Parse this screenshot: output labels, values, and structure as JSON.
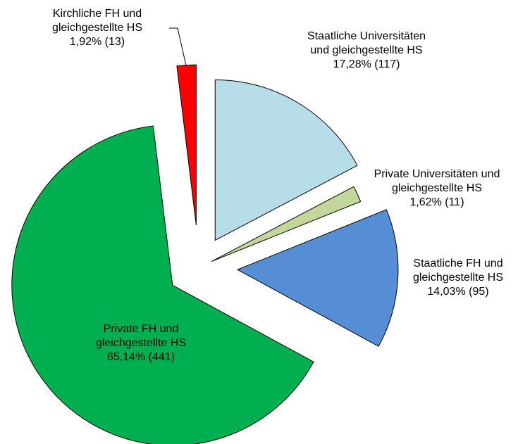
{
  "chart_data": {
    "type": "pie",
    "categories": [
      "Staatliche Universitäten und gleichgestellte HS",
      "Private Universitäten und gleichgestellte HS",
      "Staatliche FH und gleichgestellte HS",
      "Private FH und gleichgestellte HS",
      "Kirchliche FH und gleichgestellte HS"
    ],
    "values": [
      17.28,
      1.62,
      14.03,
      65.14,
      1.92
    ],
    "value_labels": [
      "17,28% (117)",
      "1,62% (11)",
      "14,03% (95)",
      "65,14% (441)",
      "1,92% (13)"
    ],
    "colors": [
      "#b7dde8",
      "#c3d69b",
      "#558ed5",
      "#00b050",
      "#ff0000"
    ]
  }
}
